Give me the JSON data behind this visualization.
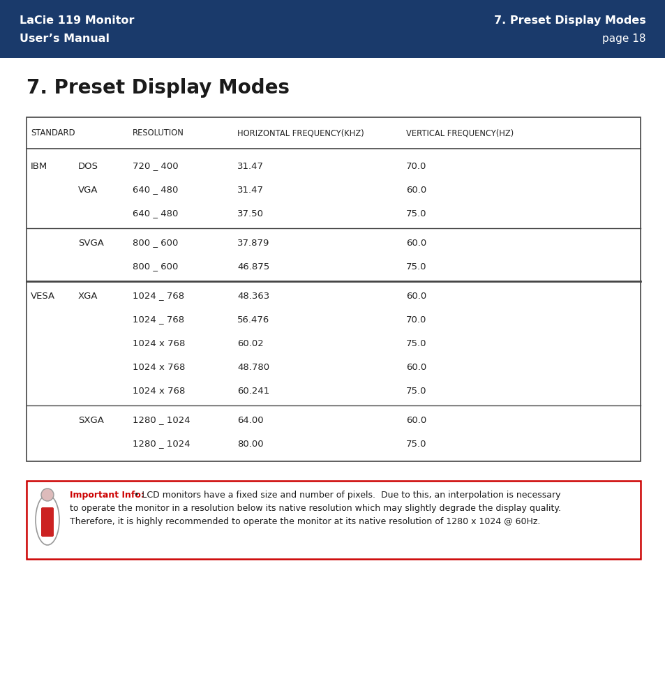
{
  "header_bg_color": "#1a3a6b",
  "header_text_color": "#ffffff",
  "header_left_line1": "LaCie 119 Monitor",
  "header_left_line2": "User’s Manual",
  "header_right_line1": "7. Preset Display Modes",
  "header_right_line2": "page 18",
  "page_title": "7. Preset Display Modes",
  "table_headers": [
    "STANDARD",
    "RESOLUTION",
    "HORIZONTAL FREQUENCY(KHZ)",
    "VERTICAL FREQUENCY(HZ)"
  ],
  "table_rows": [
    [
      "IBM",
      "DOS",
      "720 _ 400",
      "31.47",
      "70.0"
    ],
    [
      "",
      "VGA",
      "640 _ 480",
      "31.47",
      "60.0"
    ],
    [
      "",
      "",
      "640 _ 480",
      "37.50",
      "75.0"
    ],
    [
      "",
      "SVGA",
      "800 _ 600",
      "37.879",
      "60.0"
    ],
    [
      "",
      "",
      "800 _ 600",
      "46.875",
      "75.0"
    ],
    [
      "VESA",
      "XGA",
      "1024 _ 768",
      "48.363",
      "60.0"
    ],
    [
      "",
      "",
      "1024 _ 768",
      "56.476",
      "70.0"
    ],
    [
      "",
      "",
      "1024 x 768",
      "60.02",
      "75.0"
    ],
    [
      "",
      "",
      "1024 x 768",
      "48.780",
      "60.0"
    ],
    [
      "",
      "",
      "1024 x 768",
      "60.241",
      "75.0"
    ],
    [
      "",
      "SXGA",
      "1280 _ 1024",
      "64.00",
      "60.0"
    ],
    [
      "",
      "",
      "1280 _ 1024",
      "80.00",
      "75.0"
    ]
  ],
  "section_dividers_after": [
    2,
    4,
    9
  ],
  "thick_divider_after": 4,
  "note_text_bold": "Important Info:",
  "note_text_line1": " • LCD monitors have a fixed size and number of pixels.  Due to this, an interpolation is necessary",
  "note_text_line2": "to operate the monitor in a resolution below its native resolution which may slightly degrade the display quality.",
  "note_text_line3": "Therefore, it is highly recommended to operate the monitor at its native resolution of 1280 x 1024 @ 60Hz.",
  "note_border_color": "#cc0000",
  "note_text_bold_color": "#cc0000",
  "bg_color": "#ffffff",
  "table_text_color": "#222222",
  "line_color": "#444444"
}
